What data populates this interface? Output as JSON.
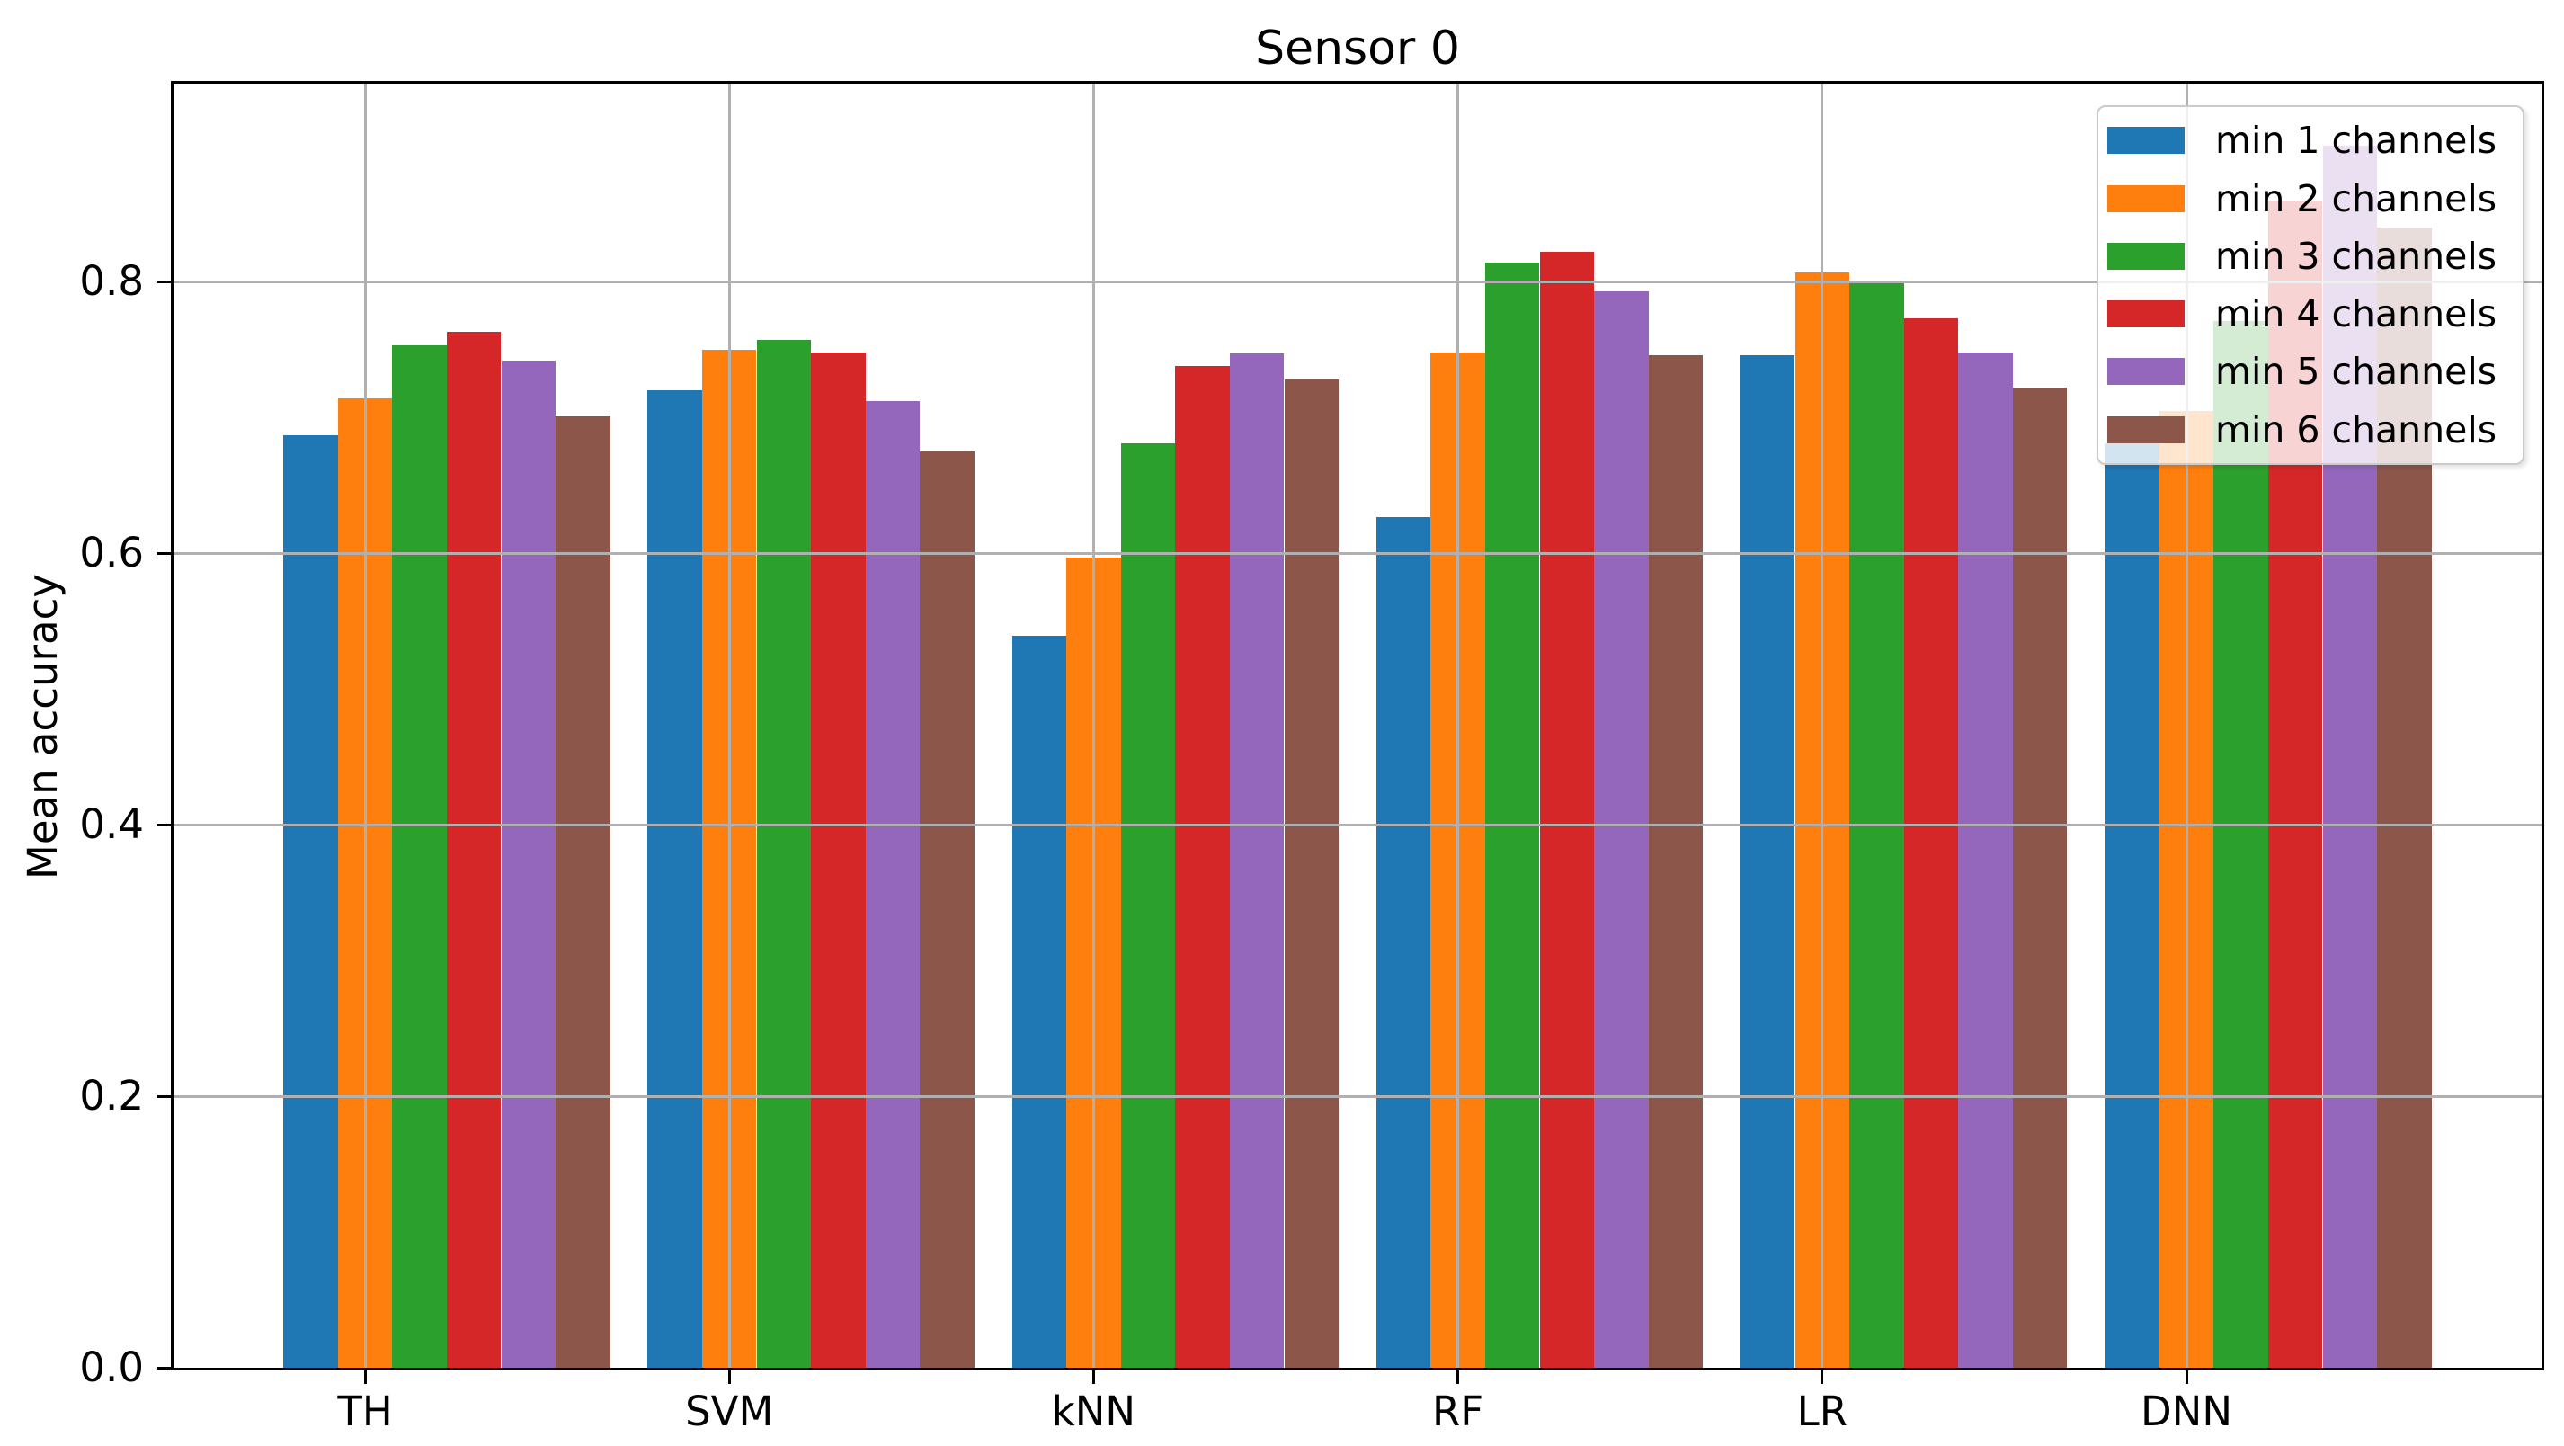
{
  "chart_data": {
    "type": "bar",
    "title": "Sensor 0",
    "xlabel": "",
    "ylabel": "Mean accuracy",
    "categories": [
      "TH",
      "SVM",
      "kNN",
      "RF",
      "LR",
      "DNN"
    ],
    "series": [
      {
        "name": "min 1 channels",
        "color": "#1f77b4",
        "values": [
          0.687,
          0.72,
          0.539,
          0.627,
          0.746,
          0.681
        ]
      },
      {
        "name": "min 2 channels",
        "color": "#ff7f0e",
        "values": [
          0.714,
          0.75,
          0.597,
          0.748,
          0.807,
          0.705
        ]
      },
      {
        "name": "min 3 channels",
        "color": "#2ca02c",
        "values": [
          0.753,
          0.757,
          0.681,
          0.814,
          0.801,
          0.771
        ]
      },
      {
        "name": "min 4 channels",
        "color": "#d62728",
        "values": [
          0.763,
          0.748,
          0.738,
          0.822,
          0.773,
          0.859
        ]
      },
      {
        "name": "min 5 channels",
        "color": "#9467bd",
        "values": [
          0.742,
          0.712,
          0.747,
          0.793,
          0.748,
          0.9
        ]
      },
      {
        "name": "min 6 channels",
        "color": "#8c564b",
        "values": [
          0.701,
          0.675,
          0.728,
          0.746,
          0.722,
          0.84
        ]
      }
    ],
    "yticks": [
      0.0,
      0.2,
      0.4,
      0.6,
      0.8
    ],
    "ytick_labels": [
      "0.0",
      "0.2",
      "0.4",
      "0.6",
      "0.8"
    ],
    "ylim": [
      0,
      0.946
    ],
    "grid": true,
    "grid_above_bars": true,
    "legend_position": "upper right"
  }
}
